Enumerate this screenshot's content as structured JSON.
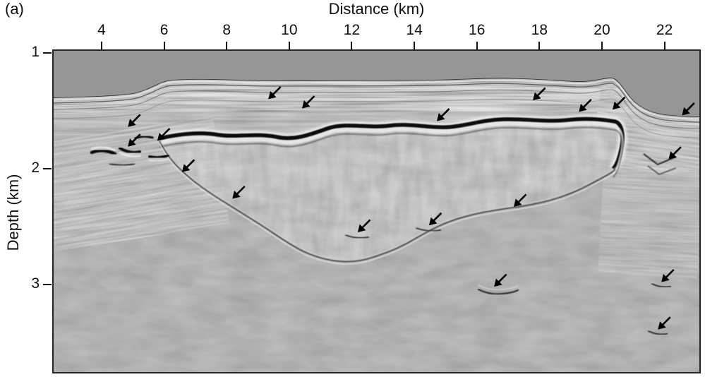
{
  "figure": {
    "panel_label": "(a)",
    "background_color": "#ffffff",
    "kind": "grayscale seismic reflection depth section with arrow annotations"
  },
  "axes": {
    "x": {
      "title": "Distance (km)",
      "ticks": [
        4,
        6,
        8,
        10,
        12,
        14,
        16,
        18,
        20,
        22
      ],
      "range_km": [
        2.42,
        23.16
      ]
    },
    "y": {
      "title": "Depth (km)",
      "ticks": [
        1,
        2,
        3
      ],
      "range_km": [
        0.97,
        3.77
      ]
    }
  },
  "colors": {
    "section_gray": "#969696",
    "frame": "#262626",
    "annotation": "#000000",
    "strong_reflector": "#0a0a0a"
  },
  "chart_data": {
    "type": "heatmap",
    "subtype": "seismic-reflection-depth-image",
    "title": "",
    "xlabel": "Distance (km)",
    "ylabel": "Depth (km)",
    "x_ticks": [
      4,
      6,
      8,
      10,
      12,
      14,
      16,
      18,
      20,
      22
    ],
    "y_ticks": [
      1,
      2,
      3
    ],
    "xlim": [
      2.42,
      23.16
    ],
    "ylim_depth": [
      0.97,
      3.77
    ],
    "colormap": "grayscale",
    "grid": false,
    "legend": false,
    "features": [
      "reflection-free uniform gray zone above ~1.25 km depth (deepening to ~1.55 km right of km 21)",
      "package of thin flat-lying reflections at ~1.25-1.45 km depth across most of the section",
      "continuous high-amplitude undulating black reflector at ~1.55-1.85 km depth from ~5.5 km to ~20.5 km, bending down at its right end",
      "bowl/basin-shaped mottled zone beneath the strong reflector, bounded below by a curved reflection reaching ~2.7-2.8 km depth near km 11-13",
      "dipping reflections and bright spots on the left flank near km 4.5-6.5",
      "dipping layered reflections and small synclinal reflections on the right flank beyond km 20.5",
      "sparse weak short reflections in the deep zone below ~2.8 km"
    ],
    "annotations": {
      "marker": "black arrow pointing down-left",
      "points_km": [
        {
          "distance_km": 4.84,
          "depth_km": 1.64
        },
        {
          "distance_km": 4.84,
          "depth_km": 1.81
        },
        {
          "distance_km": 5.78,
          "depth_km": 1.76
        },
        {
          "distance_km": 6.57,
          "depth_km": 2.03
        },
        {
          "distance_km": 8.18,
          "depth_km": 2.26
        },
        {
          "distance_km": 9.33,
          "depth_km": 1.4
        },
        {
          "distance_km": 10.41,
          "depth_km": 1.48
        },
        {
          "distance_km": 12.19,
          "depth_km": 2.55
        },
        {
          "distance_km": 14.47,
          "depth_km": 2.49
        },
        {
          "distance_km": 14.72,
          "depth_km": 1.59
        },
        {
          "distance_km": 16.55,
          "depth_km": 3.02
        },
        {
          "distance_km": 17.18,
          "depth_km": 2.33
        },
        {
          "distance_km": 17.79,
          "depth_km": 1.41
        },
        {
          "distance_km": 19.26,
          "depth_km": 1.51
        },
        {
          "distance_km": 20.34,
          "depth_km": 1.49
        },
        {
          "distance_km": 21.79,
          "depth_km": 3.39
        },
        {
          "distance_km": 21.9,
          "depth_km": 2.98
        },
        {
          "distance_km": 22.13,
          "depth_km": 1.92
        },
        {
          "distance_km": 22.56,
          "depth_km": 1.54
        }
      ]
    }
  }
}
